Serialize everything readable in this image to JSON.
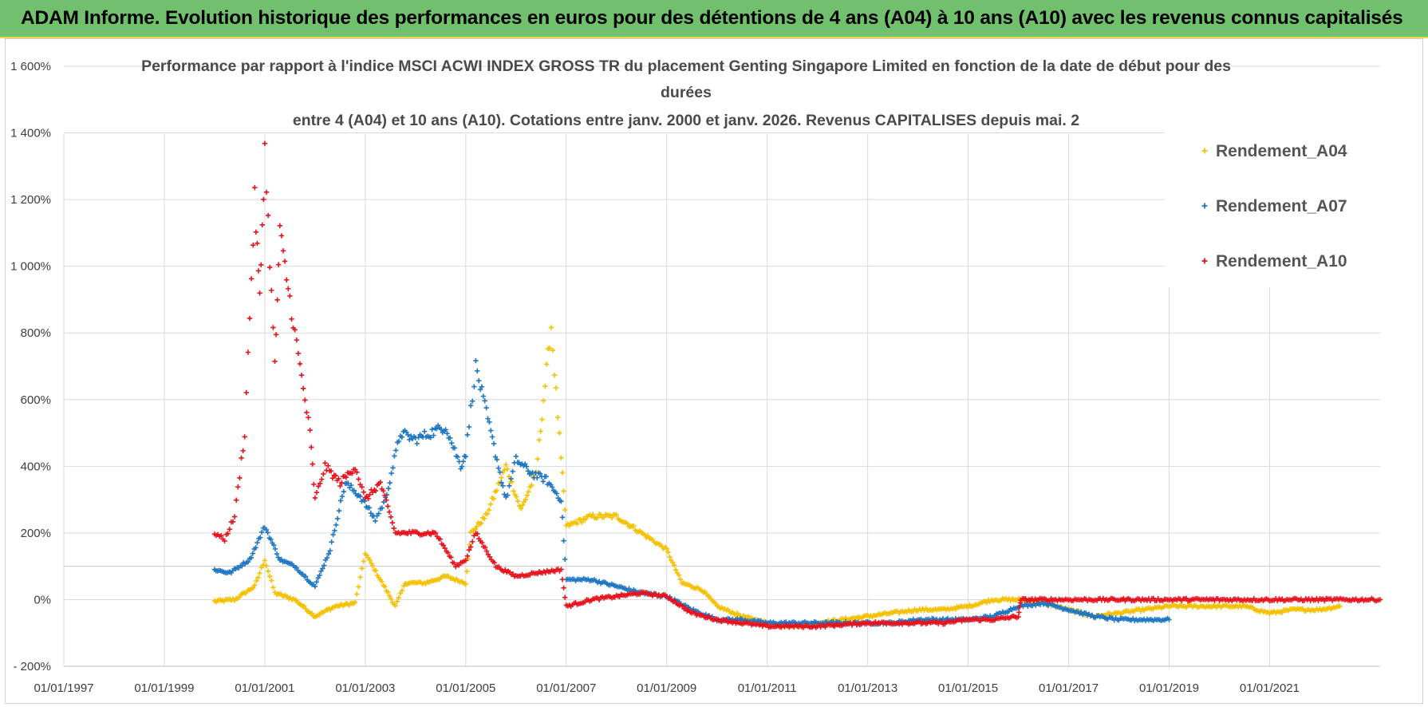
{
  "header": {
    "banner_title": "ADAM Informe. Evolution historique des performances en euros pour des détentions de 4 ans (A04) à 10 ans (A10) avec les revenus connus capitalisés",
    "banner_color": "#70c06e"
  },
  "chart_data": {
    "type": "scatter",
    "title_lines": [
      "Performance par rapport à l'indice MSCI ACWI INDEX GROSS TR  du placement Genting Singapore Limited en fonction de la date de début pour des",
      "durées",
      "entre 4 (A04) et 10 ans (A10).  Cotations entre janv. 2000 et janv. 2026. Revenus CAPITALISES depuis mai. 2"
    ],
    "x_tick_labels": [
      "01/01/1997",
      "01/01/1999",
      "01/01/2001",
      "01/01/2003",
      "01/01/2005",
      "01/01/2007",
      "01/01/2009",
      "01/01/2011",
      "01/01/2013",
      "01/01/2015",
      "01/01/2017",
      "01/01/2019",
      "01/01/2021"
    ],
    "x_range": [
      1997.0,
      2023.2
    ],
    "y_tick_labels": [
      "1 600%",
      "1 400%",
      "1 200%",
      "1 000%",
      "800%",
      "600%",
      "400%",
      "200%",
      "0%",
      "- 200%"
    ],
    "y_ticks": [
      1600,
      1400,
      1200,
      1000,
      800,
      600,
      400,
      200,
      0,
      -200
    ],
    "ylim": [
      -200,
      1600
    ],
    "grid": true,
    "legend_position": "top-right",
    "series": [
      {
        "name": "Rendement_A04",
        "color": "#f5c000",
        "points": [
          [
            2000.0,
            -5
          ],
          [
            2000.4,
            0
          ],
          [
            2000.8,
            40
          ],
          [
            2001.0,
            120
          ],
          [
            2001.2,
            20
          ],
          [
            2001.6,
            0
          ],
          [
            2002.0,
            -50
          ],
          [
            2002.4,
            -20
          ],
          [
            2002.8,
            -10
          ],
          [
            2003.0,
            140
          ],
          [
            2003.3,
            60
          ],
          [
            2003.6,
            -20
          ],
          [
            2003.8,
            50
          ],
          [
            2004.2,
            50
          ],
          [
            2004.6,
            70
          ],
          [
            2005.0,
            50
          ],
          [
            2005.1,
            200
          ],
          [
            2005.4,
            250
          ],
          [
            2005.8,
            400
          ],
          [
            2006.1,
            270
          ],
          [
            2006.4,
            380
          ],
          [
            2006.7,
            820
          ],
          [
            2006.9,
            420
          ],
          [
            2007.0,
            220
          ],
          [
            2007.5,
            250
          ],
          [
            2008.0,
            250
          ],
          [
            2008.5,
            200
          ],
          [
            2009.0,
            150
          ],
          [
            2009.3,
            50
          ],
          [
            2009.7,
            30
          ],
          [
            2010.0,
            -20
          ],
          [
            2010.5,
            -50
          ],
          [
            2011.0,
            -70
          ],
          [
            2011.5,
            -80
          ],
          [
            2012.0,
            -70
          ],
          [
            2012.5,
            -60
          ],
          [
            2013.0,
            -50
          ],
          [
            2013.5,
            -40
          ],
          [
            2014.0,
            -30
          ],
          [
            2014.5,
            -30
          ],
          [
            2015.0,
            -20
          ],
          [
            2015.5,
            0
          ],
          [
            2016.0,
            0
          ],
          [
            2016.5,
            -10
          ],
          [
            2017.0,
            -30
          ],
          [
            2017.5,
            -50
          ],
          [
            2018.0,
            -40
          ],
          [
            2018.5,
            -30
          ],
          [
            2019.0,
            -20
          ],
          [
            2019.5,
            -20
          ],
          [
            2020.0,
            -20
          ],
          [
            2020.5,
            -20
          ],
          [
            2021.0,
            -40
          ],
          [
            2021.5,
            -30
          ],
          [
            2022.0,
            -30
          ],
          [
            2022.4,
            -20
          ]
        ]
      },
      {
        "name": "Rendement_A07",
        "color": "#1f77c4",
        "points": [
          [
            2000.0,
            90
          ],
          [
            2000.3,
            80
          ],
          [
            2000.7,
            120
          ],
          [
            2001.0,
            220
          ],
          [
            2001.3,
            120
          ],
          [
            2001.6,
            100
          ],
          [
            2002.0,
            40
          ],
          [
            2002.3,
            150
          ],
          [
            2002.6,
            350
          ],
          [
            2002.9,
            310
          ],
          [
            2003.2,
            240
          ],
          [
            2003.4,
            300
          ],
          [
            2003.7,
            500
          ],
          [
            2004.0,
            480
          ],
          [
            2004.3,
            500
          ],
          [
            2004.6,
            520
          ],
          [
            2004.9,
            400
          ],
          [
            2005.0,
            440
          ],
          [
            2005.2,
            700
          ],
          [
            2005.5,
            500
          ],
          [
            2005.8,
            300
          ],
          [
            2006.0,
            420
          ],
          [
            2006.3,
            380
          ],
          [
            2006.6,
            360
          ],
          [
            2006.9,
            300
          ],
          [
            2007.0,
            60
          ],
          [
            2007.5,
            60
          ],
          [
            2008.0,
            40
          ],
          [
            2008.5,
            20
          ],
          [
            2009.0,
            10
          ],
          [
            2009.5,
            -30
          ],
          [
            2010.0,
            -60
          ],
          [
            2010.5,
            -60
          ],
          [
            2011.0,
            -70
          ],
          [
            2011.5,
            -70
          ],
          [
            2012.0,
            -70
          ],
          [
            2012.5,
            -70
          ],
          [
            2013.0,
            -70
          ],
          [
            2013.5,
            -70
          ],
          [
            2014.0,
            -60
          ],
          [
            2014.5,
            -60
          ],
          [
            2015.0,
            -60
          ],
          [
            2015.5,
            -50
          ],
          [
            2016.0,
            -20
          ],
          [
            2016.5,
            -10
          ],
          [
            2017.0,
            -30
          ],
          [
            2017.5,
            -50
          ],
          [
            2018.0,
            -60
          ],
          [
            2018.5,
            -60
          ],
          [
            2019.0,
            -60
          ]
        ]
      },
      {
        "name": "Rendement_A10",
        "color": "#e8121c",
        "points": [
          [
            2000.0,
            200
          ],
          [
            2000.2,
            180
          ],
          [
            2000.4,
            250
          ],
          [
            2000.6,
            500
          ],
          [
            2000.8,
            1200
          ],
          [
            2000.9,
            900
          ],
          [
            2001.0,
            1350
          ],
          [
            2001.2,
            700
          ],
          [
            2001.3,
            1100
          ],
          [
            2001.5,
            900
          ],
          [
            2001.7,
            700
          ],
          [
            2001.9,
            500
          ],
          [
            2002.0,
            300
          ],
          [
            2002.2,
            400
          ],
          [
            2002.5,
            350
          ],
          [
            2002.8,
            400
          ],
          [
            2003.0,
            300
          ],
          [
            2003.3,
            350
          ],
          [
            2003.6,
            200
          ],
          [
            2004.0,
            200
          ],
          [
            2004.4,
            200
          ],
          [
            2004.8,
            100
          ],
          [
            2005.0,
            120
          ],
          [
            2005.2,
            200
          ],
          [
            2005.6,
            100
          ],
          [
            2006.0,
            70
          ],
          [
            2006.4,
            80
          ],
          [
            2006.9,
            90
          ],
          [
            2007.0,
            -20
          ],
          [
            2007.5,
            0
          ],
          [
            2008.0,
            10
          ],
          [
            2008.5,
            20
          ],
          [
            2009.0,
            10
          ],
          [
            2009.5,
            -40
          ],
          [
            2010.0,
            -60
          ],
          [
            2010.5,
            -70
          ],
          [
            2011.0,
            -80
          ],
          [
            2011.5,
            -80
          ],
          [
            2012.0,
            -80
          ],
          [
            2012.5,
            -75
          ],
          [
            2013.0,
            -70
          ],
          [
            2013.5,
            -70
          ],
          [
            2014.0,
            -70
          ],
          [
            2014.5,
            -70
          ],
          [
            2015.0,
            -60
          ],
          [
            2015.5,
            -60
          ],
          [
            2016.0,
            -50
          ],
          [
            2016.05,
            0
          ],
          [
            2017.0,
            0
          ],
          [
            2018.0,
            0
          ],
          [
            2019.0,
            0
          ],
          [
            2020.0,
            0
          ],
          [
            2021.0,
            0
          ],
          [
            2022.0,
            0
          ],
          [
            2023.0,
            0
          ],
          [
            2023.2,
            0
          ]
        ]
      }
    ]
  }
}
